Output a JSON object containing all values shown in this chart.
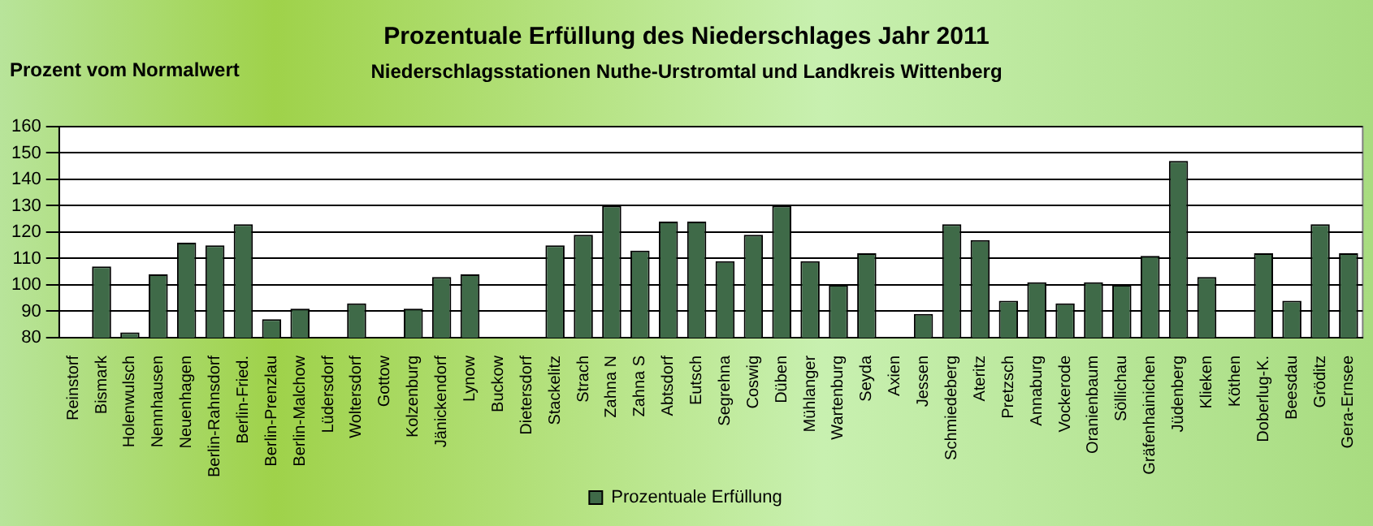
{
  "chart_data": {
    "type": "bar",
    "title": "Prozentuale Erfüllung des Niederschlages Jahr 2011",
    "subtitle": "Niederschlagsstationen Nuthe-Urstromtal und Landkreis Wittenberg",
    "ylabel": "Prozent vom Normalwert",
    "categories": [
      "Reinstorf",
      "Bismark",
      "Holenwulsch",
      "Nennhausen",
      "Neuenhagen",
      "Berlin-Rahnsdorf",
      "Berlin-Fried.",
      "Berlin-Prenzlau",
      "Berlin-Malchow",
      "Lüdersdorf",
      "Woltersdorf",
      "Gottow",
      "Kolzenburg",
      "Jänickendorf",
      "Lynow",
      "Buckow",
      "Dietersdorf",
      "Stackelitz",
      "Strach",
      "Zahna N",
      "Zahna S",
      "Abtsdorf",
      "Eutsch",
      "Segrehna",
      "Coswig",
      "Düben",
      "Mühlanger",
      "Wartenburg",
      "Seyda",
      "Axien",
      "Jessen",
      "Schmiedeberg",
      "Ateritz",
      "Pretzsch",
      "Annaburg",
      "Vockerode",
      "Oranienbaum",
      "Söllichau",
      "Gräfenhainichen",
      "Jüdenberg",
      "Klieken",
      "Köthen",
      "Doberlug-K.",
      "Beesdau",
      "Gröditz",
      "Gera-Ernsee"
    ],
    "series": [
      {
        "name": "Prozentuale Erfüllung",
        "color": "#3f6a48",
        "values": [
          null,
          107,
          82,
          104,
          116,
          115,
          123,
          87,
          91,
          null,
          93,
          null,
          91,
          103,
          104,
          null,
          null,
          115,
          119,
          130,
          113,
          124,
          124,
          109,
          119,
          130,
          109,
          100,
          112,
          null,
          89,
          123,
          117,
          94,
          101,
          93,
          101,
          100,
          111,
          147,
          103,
          null,
          112,
          94,
          123,
          112
        ]
      }
    ],
    "ylim": [
      80,
      160
    ],
    "yticks": [
      80,
      90,
      100,
      110,
      120,
      130,
      140,
      150,
      160
    ],
    "grid": "y",
    "legend": "bottom"
  }
}
